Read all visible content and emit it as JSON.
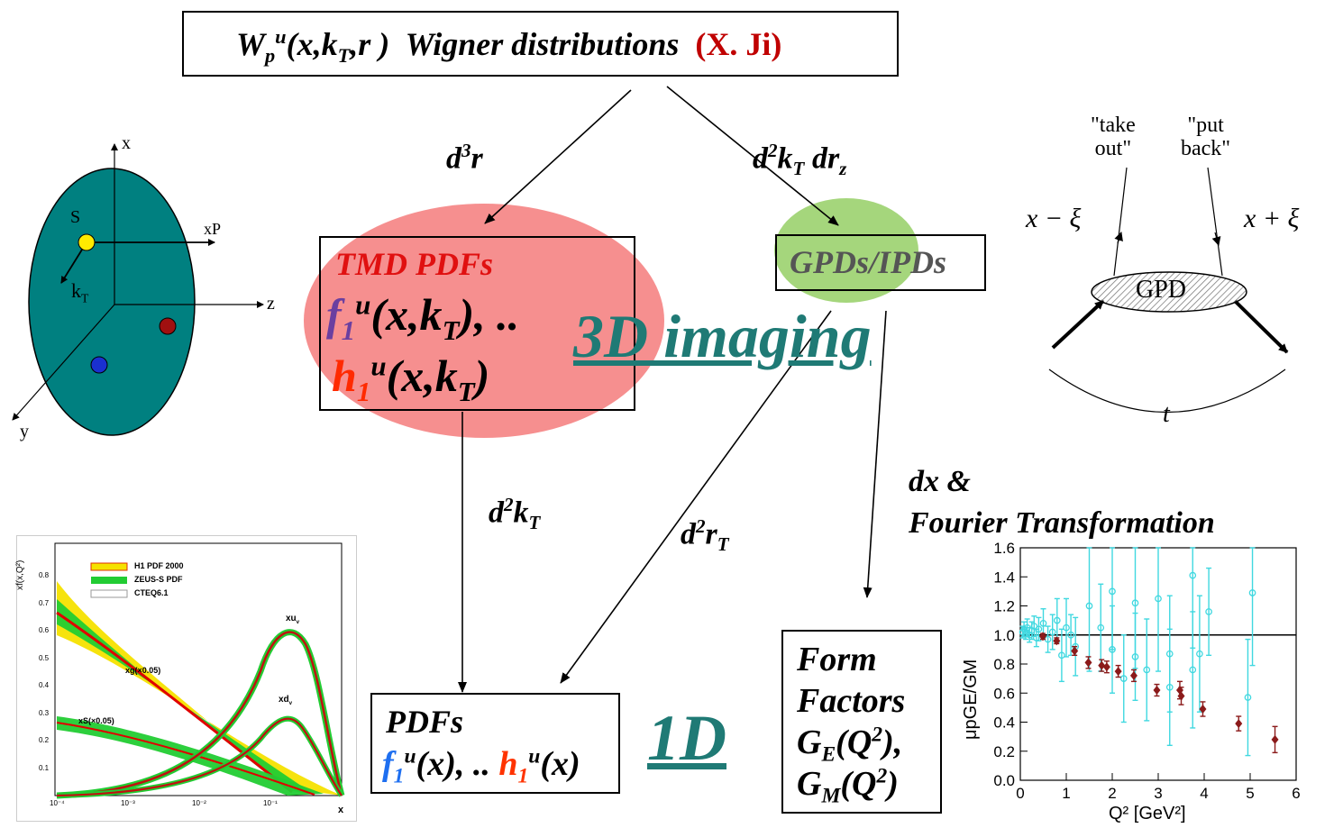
{
  "top_box": {
    "w": "W",
    "w_sub": "p",
    "w_sup": "u",
    "args": "(x,k",
    "args_sub": "T",
    "args_end": ",r )",
    "title": "Wigner distributions",
    "author": "(X. Ji)"
  },
  "edges": {
    "d3r": {
      "base": "d",
      "sup": "3",
      "rest": "r"
    },
    "d2kTdrz": {
      "d": "d",
      "sup": "2",
      "k": "k",
      "k_sub": "T",
      "dr": "dr",
      "dr_sub": "z"
    },
    "d2kT": {
      "d": "d",
      "sup": "2",
      "k": "k",
      "k_sub": "T"
    },
    "d2rT": {
      "d": "d",
      "sup": "2",
      "r": "r",
      "r_sub": "T"
    },
    "dx": "dx &",
    "fourier": "Fourier Transformation"
  },
  "tmd": {
    "title": "TMD PDFs",
    "f": "f",
    "f_sub": "1",
    "f_sup": "u",
    "f_args": "(x,k",
    "f_args_sub": "T",
    "f_end": "), ..",
    "h": "h",
    "h_sub": "1",
    "h_sup": "u",
    "h_args": "(x,k",
    "h_args_sub": "T",
    "h_end": ")"
  },
  "gpd_box": {
    "label": "GPDs/IPDs"
  },
  "imaging": "3D imaging",
  "pdf_box": {
    "title": "PDFs",
    "f": "f",
    "f_sub": "1",
    "f_sup": "u",
    "f_end": "(x), ..",
    "h": "h",
    "h_sub": "1",
    "h_sup": "u",
    "h_end": "(x)"
  },
  "one_d": "1D",
  "ff_box": {
    "line1": "Form",
    "line2": "Factors",
    "ge": "G",
    "ge_sub": "E",
    "ge_end": "(Q",
    "ge_sup": "2",
    "ge_close": "),",
    "gm": "G",
    "gm_sub": "M",
    "gm_end": "(Q",
    "gm_sup": "2",
    "gm_close": ")"
  },
  "nucleon": {
    "x": "x",
    "xp": "xP",
    "z": "z",
    "y": "y",
    "s": "S",
    "kt": "k",
    "kt_sub": "T"
  },
  "gpd_diagram": {
    "take_out": [
      "\"take",
      "out\""
    ],
    "put_back": [
      "\"put",
      "back\""
    ],
    "x_minus": "x − ξ",
    "x_plus": "x + ξ",
    "blob": "GPD",
    "t": "t"
  },
  "pdf_plot": {
    "ylabel": "xf(x,Q²)",
    "xlabel": "x",
    "legend": [
      "H1 PDF 2000",
      "ZEUS-S PDF",
      "CTEQ6.1"
    ],
    "labels": {
      "xuv": "xu",
      "xuv_sub": "v",
      "xdv": "xd",
      "xdv_sub": "v",
      "xg": "xg(×0.05)",
      "xs": "xS(×0.05)"
    },
    "yticks": [
      "0.1",
      "0.2",
      "0.3",
      "0.4",
      "0.5",
      "0.6",
      "0.7",
      "0.8"
    ],
    "xticks": [
      "10⁻⁴",
      "10⁻³",
      "10⁻²",
      "10⁻¹"
    ]
  },
  "chart_data": {
    "type": "scatter",
    "xlabel": "Q² [GeV²]",
    "ylabel": "μpGE/GM",
    "xlim": [
      0,
      6
    ],
    "ylim": [
      0,
      1.6
    ],
    "xticks": [
      "0",
      "1",
      "2",
      "3",
      "4",
      "5",
      "6"
    ],
    "yticks": [
      "0.0",
      "0.2",
      "0.4",
      "0.6",
      "0.8",
      "1.0",
      "1.2",
      "1.4",
      "1.6"
    ],
    "reference_line": 1.0,
    "series": [
      {
        "color": "#8B1A1A",
        "points": [
          [
            0.49,
            0.99,
            0.02
          ],
          [
            0.79,
            0.96,
            0.02
          ],
          [
            1.18,
            0.89,
            0.03
          ],
          [
            1.48,
            0.81,
            0.04
          ],
          [
            1.77,
            0.79,
            0.04
          ],
          [
            1.88,
            0.78,
            0.04
          ],
          [
            2.13,
            0.75,
            0.04
          ],
          [
            2.47,
            0.72,
            0.04
          ],
          [
            2.97,
            0.62,
            0.04
          ],
          [
            3.47,
            0.62,
            0.06
          ],
          [
            3.5,
            0.58,
            0.06
          ],
          [
            3.97,
            0.49,
            0.05
          ],
          [
            4.75,
            0.39,
            0.05
          ],
          [
            5.54,
            0.28,
            0.09
          ]
        ]
      },
      {
        "color": "#40D8E0",
        "points": [
          [
            0.05,
            1.02,
            0.04
          ],
          [
            0.08,
            1.04,
            0.05
          ],
          [
            0.12,
            1.01,
            0.04
          ],
          [
            0.15,
            1.05,
            0.06
          ],
          [
            0.2,
            1.0,
            0.05
          ],
          [
            0.25,
            1.03,
            0.06
          ],
          [
            0.3,
            1.06,
            0.07
          ],
          [
            0.35,
            0.98,
            0.06
          ],
          [
            0.4,
            1.04,
            0.08
          ],
          [
            0.5,
            1.08,
            0.1
          ],
          [
            0.6,
            0.97,
            0.09
          ],
          [
            0.7,
            1.02,
            0.12
          ],
          [
            0.8,
            1.1,
            0.15
          ],
          [
            0.9,
            0.86,
            0.18
          ],
          [
            1.0,
            1.05,
            0.2
          ],
          [
            1.1,
            1.0,
            0.14
          ],
          [
            1.2,
            0.92,
            0.2
          ],
          [
            1.5,
            1.2,
            0.45
          ],
          [
            1.75,
            1.05,
            0.3
          ],
          [
            2.0,
            1.3,
            0.4
          ],
          [
            2.0,
            0.9,
            0.3
          ],
          [
            2.25,
            0.7,
            0.3
          ],
          [
            2.5,
            1.22,
            0.45
          ],
          [
            2.5,
            0.85,
            0.3
          ],
          [
            2.75,
            0.76,
            0.35
          ],
          [
            3.0,
            1.25,
            0.5
          ],
          [
            3.25,
            0.87,
            0.4
          ],
          [
            3.25,
            0.64,
            0.4
          ],
          [
            3.75,
            1.41,
            0.5
          ],
          [
            3.75,
            0.76,
            0.4
          ],
          [
            3.9,
            0.87,
            0.4
          ],
          [
            4.1,
            1.16,
            0.3
          ],
          [
            4.95,
            0.57,
            0.4
          ],
          [
            5.05,
            1.29,
            0.5
          ]
        ]
      }
    ]
  }
}
